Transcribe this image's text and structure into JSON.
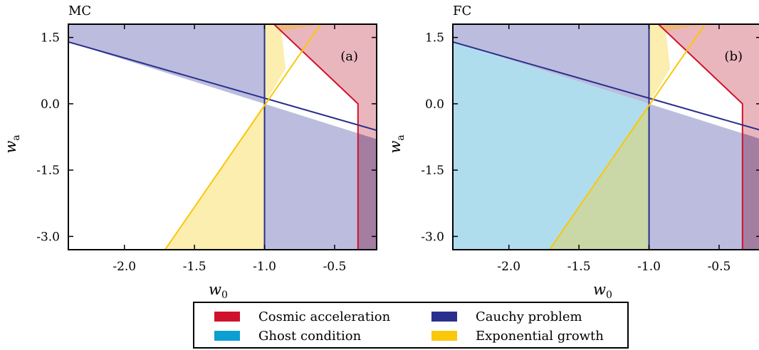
{
  "chart_data": [
    {
      "type": "area",
      "title": "MC",
      "panel_tag": "(a)",
      "xlabel": "w",
      "xlabel_sub": "0",
      "ylabel": "w",
      "ylabel_sub": "a",
      "xlim": [
        -2.4,
        -0.2
      ],
      "ylim": [
        -3.3,
        1.8
      ],
      "xticks": [
        -2.0,
        -1.5,
        -1.0,
        -0.5
      ],
      "xtick_labels": [
        "-2.0",
        "-1.5",
        "-1.0",
        "-0.5"
      ],
      "yticks": [
        1.5,
        0.0,
        -1.5,
        -3.0
      ],
      "ytick_labels": [
        "1.5",
        "0.0",
        "-1.5",
        "-3.0"
      ],
      "regions": [
        {
          "name": "Cosmic acceleration",
          "boundary": [
            [
              -2.4,
              2.0
            ],
            [
              -0.333,
              0.0
            ],
            [
              -0.333,
              -3.3
            ]
          ]
        },
        {
          "name": "Cauchy problem",
          "boundary": [
            [
              -2.4,
              1.4
            ],
            [
              -1.0,
              0.0
            ],
            [
              -0.2,
              -0.8
            ],
            [
              -1.0,
              -3.3
            ],
            [
              -1.0,
              1.8
            ]
          ]
        },
        {
          "name": "Exponential growth",
          "boundary": [
            [
              -1.71,
              -3.3
            ],
            [
              -1.0,
              0.0
            ],
            [
              -0.6,
              1.8
            ]
          ]
        }
      ]
    },
    {
      "type": "area",
      "title": "FC",
      "panel_tag": "(b)",
      "xlabel": "w",
      "xlabel_sub": "0",
      "ylabel": "w",
      "ylabel_sub": "a",
      "xlim": [
        -2.4,
        -0.2
      ],
      "ylim": [
        -3.3,
        1.8
      ],
      "xticks": [
        -2.0,
        -1.5,
        -1.0,
        -0.5
      ],
      "xtick_labels": [
        "-2.0",
        "-1.5",
        "-1.0",
        "-0.5"
      ],
      "yticks": [
        1.5,
        0.0,
        -1.5,
        -3.0
      ],
      "ytick_labels": [
        "1.5",
        "0.0",
        "-1.5",
        "-3.0"
      ],
      "regions": [
        {
          "name": "Cosmic acceleration",
          "boundary": [
            [
              -2.4,
              2.0
            ],
            [
              -0.333,
              0.0
            ],
            [
              -0.333,
              -3.3
            ]
          ]
        },
        {
          "name": "Cauchy problem",
          "boundary": [
            [
              -2.4,
              1.4
            ],
            [
              -1.0,
              0.0
            ],
            [
              -0.2,
              -0.8
            ],
            [
              -1.0,
              -3.3
            ],
            [
              -1.0,
              1.8
            ]
          ]
        },
        {
          "name": "Ghost condition",
          "boundary": [
            [
              -2.4,
              1.4
            ],
            [
              -1.0,
              0.0
            ],
            [
              -1.0,
              -3.3
            ]
          ]
        },
        {
          "name": "Exponential growth",
          "boundary": [
            [
              -1.71,
              -3.3
            ],
            [
              -1.0,
              0.0
            ],
            [
              -0.6,
              1.8
            ]
          ]
        }
      ]
    }
  ],
  "legend": {
    "items": [
      {
        "label": "Cosmic acceleration",
        "color": "#d0112b"
      },
      {
        "label": "Cauchy problem",
        "color": "#2a2f8e"
      },
      {
        "label": "Ghost condition",
        "color": "#0b9fd3"
      },
      {
        "label": "Exponential growth",
        "color": "#fac70b"
      }
    ]
  },
  "colors": {
    "acceleration_fill": "#eab6bd",
    "acceleration_line": "#d0112b",
    "cauchy_fill": "#bcbdde",
    "cauchy_line": "#2a2f8e",
    "overlap_acc_cauchy_fill": "#b08ca8",
    "overlap_acc_cauchy_strip": "#a47ea0",
    "growth_fill": "#fbeeae",
    "growth_line": "#fac70b",
    "overlap_acc_growth_fill": "#f1b67e",
    "ghost_fill": "#b0ddee",
    "overlap_ghost_growth_fill": "#c9d8a6"
  }
}
